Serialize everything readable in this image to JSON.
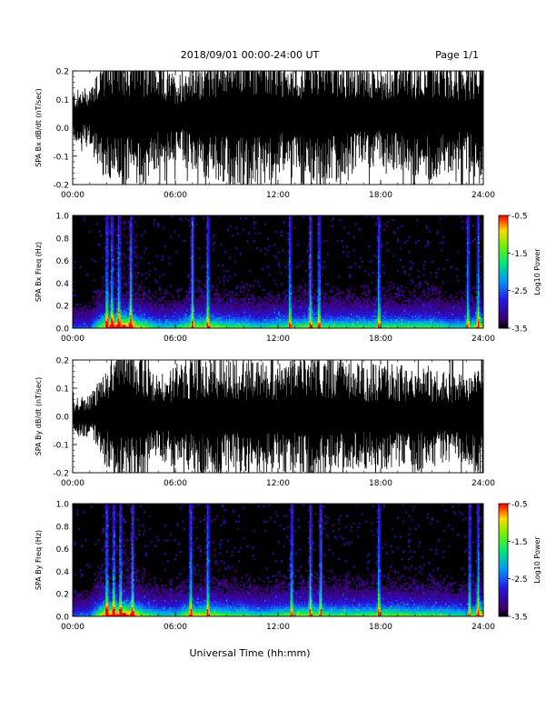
{
  "header": {
    "title": "2018/09/01   00:00-24:00 UT",
    "page": "Page 1/1"
  },
  "xlabel": "Universal Time (hh:mm)",
  "colors": {
    "background": "#ffffff",
    "trace": "#000000",
    "spectrogram_floor": "#000000"
  },
  "chart_data": [
    {
      "type": "line",
      "ylabel": "SPA Bx dB/dt (nT/sec)",
      "xrange_hours": [
        0,
        24
      ],
      "xticks": [
        "00:00",
        "06:00",
        "12:00",
        "18:00",
        "24:00"
      ],
      "ylim": [
        -0.2,
        0.2
      ],
      "yticks": [
        "0.2",
        "0.1",
        "0.0",
        "-0.1",
        "-0.2"
      ],
      "envelope_hours": [
        0,
        1,
        2,
        3,
        4,
        5,
        6,
        7,
        8,
        9,
        10,
        11,
        12,
        13,
        14,
        15,
        16,
        17,
        18,
        19,
        20,
        21,
        22,
        23,
        24
      ],
      "envelope_amplitude": [
        0.07,
        0.09,
        0.2,
        0.2,
        0.2,
        0.15,
        0.12,
        0.15,
        0.18,
        0.2,
        0.2,
        0.2,
        0.16,
        0.14,
        0.2,
        0.2,
        0.17,
        0.15,
        0.14,
        0.16,
        0.17,
        0.18,
        0.16,
        0.15,
        0.2
      ],
      "baseline": 0.04
    },
    {
      "type": "heatmap",
      "ylabel": "SPA Bx Freq (Hz)",
      "xrange_hours": [
        0,
        24
      ],
      "xticks": [
        "00:00",
        "06:00",
        "12:00",
        "18:00",
        "24:00"
      ],
      "ylim": [
        0.0,
        1.0
      ],
      "yticks": [
        "1.0",
        "0.8",
        "0.6",
        "0.4",
        "0.2",
        "0.0"
      ],
      "colorbar": {
        "label": "Log10 Power",
        "range": [
          -3.5,
          -0.5
        ],
        "ticks": [
          "-0.5",
          "-1.5",
          "-2.5",
          "-3.5"
        ]
      },
      "bright_bands_hours": [
        2.0,
        2.3,
        2.7,
        3.4,
        7.0,
        7.9,
        12.7,
        13.9,
        14.4,
        17.9,
        23.1,
        23.7
      ],
      "activity_hours": [
        0,
        1,
        2,
        3,
        4,
        5,
        6,
        7,
        8,
        9,
        10,
        11,
        12,
        13,
        14,
        15,
        16,
        17,
        18,
        19,
        20,
        21,
        22,
        23,
        24
      ],
      "activity_level": [
        0.3,
        0.3,
        0.9,
        1.0,
        0.7,
        0.5,
        0.5,
        0.7,
        0.7,
        0.6,
        0.6,
        0.5,
        0.6,
        0.6,
        0.7,
        0.6,
        0.6,
        0.6,
        0.6,
        0.6,
        0.6,
        0.6,
        0.5,
        0.5,
        0.8
      ]
    },
    {
      "type": "line",
      "ylabel": "SPA By dB/dt (nT/sec)",
      "xrange_hours": [
        0,
        24
      ],
      "xticks": [
        "00:00",
        "06:00",
        "12:00",
        "18:00",
        "24:00"
      ],
      "ylim": [
        -0.2,
        0.2
      ],
      "yticks": [
        "0.2",
        "0.1",
        "0.0",
        "-0.1",
        "-0.2"
      ],
      "envelope_hours": [
        0,
        1,
        2,
        3,
        4,
        5,
        6,
        7,
        8,
        9,
        10,
        11,
        12,
        13,
        14,
        15,
        16,
        17,
        18,
        19,
        20,
        21,
        22,
        23,
        24
      ],
      "envelope_amplitude": [
        0.05,
        0.06,
        0.15,
        0.2,
        0.2,
        0.12,
        0.15,
        0.17,
        0.18,
        0.17,
        0.16,
        0.17,
        0.16,
        0.16,
        0.2,
        0.18,
        0.16,
        0.15,
        0.15,
        0.15,
        0.16,
        0.14,
        0.13,
        0.13,
        0.2
      ],
      "baseline": 0.0
    },
    {
      "type": "heatmap",
      "ylabel": "SPA By Freq (Hz)",
      "xrange_hours": [
        0,
        24
      ],
      "xticks": [
        "00:00",
        "06:00",
        "12:00",
        "18:00",
        "24:00"
      ],
      "ylim": [
        0.0,
        1.0
      ],
      "yticks": [
        "1.0",
        "0.8",
        "0.6",
        "0.4",
        "0.2",
        "0.0"
      ],
      "colorbar": {
        "label": "Log10 Power",
        "range": [
          -3.5,
          -0.5
        ],
        "ticks": [
          "-0.5",
          "-1.5",
          "-2.5",
          "-3.5"
        ]
      },
      "bright_bands_hours": [
        2.0,
        2.4,
        2.8,
        3.5,
        6.9,
        7.9,
        12.8,
        13.9,
        14.5,
        17.9,
        23.2,
        23.7
      ],
      "activity_hours": [
        0,
        1,
        2,
        3,
        4,
        5,
        6,
        7,
        8,
        9,
        10,
        11,
        12,
        13,
        14,
        15,
        16,
        17,
        18,
        19,
        20,
        21,
        22,
        23,
        24
      ],
      "activity_level": [
        0.3,
        0.35,
        0.95,
        1.0,
        0.7,
        0.5,
        0.5,
        0.75,
        0.7,
        0.6,
        0.6,
        0.5,
        0.6,
        0.65,
        0.7,
        0.6,
        0.6,
        0.6,
        0.65,
        0.65,
        0.6,
        0.6,
        0.55,
        0.5,
        0.8
      ]
    }
  ]
}
